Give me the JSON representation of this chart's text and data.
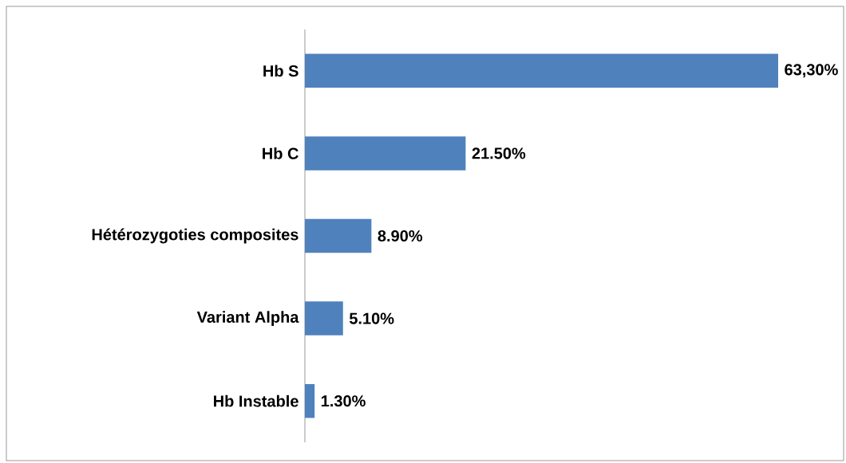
{
  "chart_data": {
    "type": "bar",
    "orientation": "horizontal",
    "categories": [
      "Hb S",
      "Hb C",
      "Hétérozygoties composites",
      "Variant Alpha",
      "Hb Instable"
    ],
    "values": [
      63.3,
      21.5,
      8.9,
      5.1,
      1.3
    ],
    "value_labels": [
      "63,30%",
      "21.50%",
      "8.90%",
      "5.10%",
      "1.30%"
    ],
    "color": "#4f81bd"
  }
}
